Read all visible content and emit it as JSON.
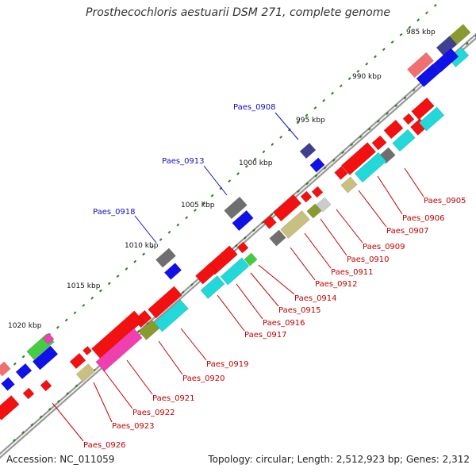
{
  "title": "Prosthecochloris aestuarii DSM 271, complete genome",
  "accession": "Accession: NC_011059",
  "summary": "Topology: circular; Length: 2,512,923 bp; Genes: 2,312",
  "tick_labels": [
    "985 kbp",
    "990 kbp",
    "995 kbp",
    "1000 kbp",
    "1005 kbp",
    "1010 kbp",
    "1015 kbp",
    "1020 kbp"
  ],
  "upper_gene_labels": [
    "Paes_0908",
    "Paes_0913",
    "Paes_0918"
  ],
  "lower_gene_labels": [
    "Paes_0905",
    "Paes_0906",
    "Paes_0907",
    "Paes_0909",
    "Paes_0910",
    "Paes_0911",
    "Paes_0912",
    "Paes_0914",
    "Paes_0915",
    "Paes_0916",
    "Paes_0917",
    "Paes_0919",
    "Paes_0920",
    "Paes_0921",
    "Paes_0922",
    "Paes_0923",
    "Paes_0926"
  ],
  "colors": {
    "backbone": "#9a9a9a",
    "tick": "#2e7d1e",
    "upper_label": "#1010c0",
    "lower_label": "#c00000",
    "blue": "#1010e8",
    "red": "#f21010",
    "cyan": "#22d8d8",
    "gray": "#6f6f6f",
    "olive": "#8a9a30",
    "khaki": "#c8c080",
    "green": "#44cc44",
    "pink": "#f07070",
    "navy": "#404090",
    "magenta": "#f040b0",
    "silver": "#cccccc"
  }
}
